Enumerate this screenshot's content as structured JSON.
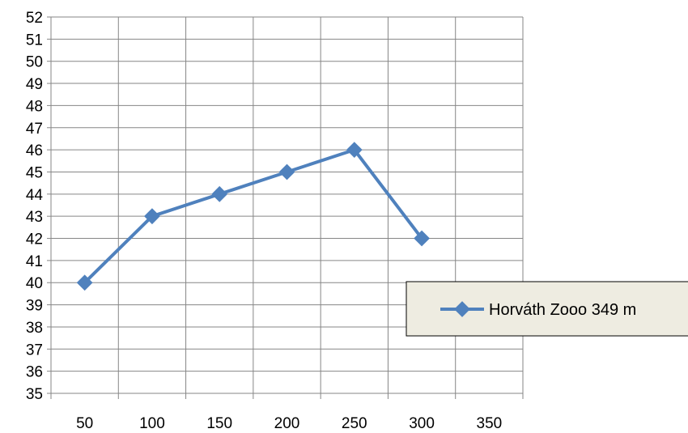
{
  "chart_data": {
    "type": "line",
    "categories": [
      "50",
      "100",
      "150",
      "200",
      "250",
      "300",
      "350"
    ],
    "series": [
      {
        "name": "Horváth Zooo 349 m",
        "values": [
          40,
          43,
          44,
          45,
          46,
          42,
          null
        ],
        "color": "#4f81bd",
        "marker": "diamond"
      }
    ],
    "yticks": [
      35,
      36,
      37,
      38,
      39,
      40,
      41,
      42,
      43,
      44,
      45,
      46,
      47,
      48,
      49,
      50,
      51,
      52
    ],
    "ylim": [
      35,
      52
    ],
    "grid": true,
    "legend_position": "right",
    "legend_background": "#eeece1",
    "grid_color": "#868686"
  }
}
